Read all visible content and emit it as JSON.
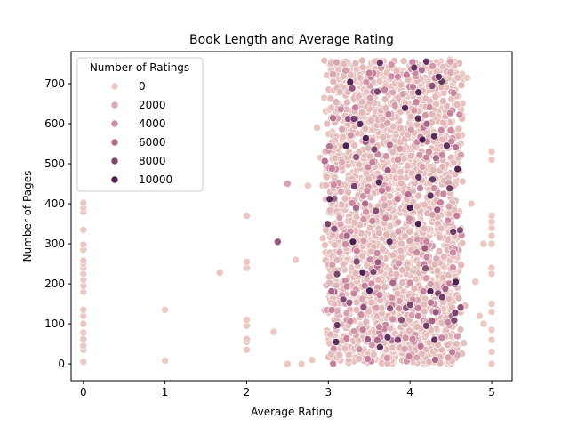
{
  "chart_data": {
    "type": "scatter",
    "title": "Book Length and Average Rating",
    "xlabel": "Average Rating",
    "ylabel": "Number of Pages",
    "xlim": [
      -0.15,
      5.25
    ],
    "ylim": [
      -42,
      780
    ],
    "xticks": [
      0,
      1,
      2,
      3,
      4,
      5
    ],
    "yticks": [
      0,
      100,
      200,
      300,
      400,
      500,
      600,
      700
    ],
    "grid": false,
    "legend": {
      "title": "Number of Ratings",
      "placement": "upper-left",
      "entries": [
        {
          "label": "0",
          "value": 0
        },
        {
          "label": "2000",
          "value": 2000
        },
        {
          "label": "4000",
          "value": 4000
        },
        {
          "label": "6000",
          "value": 6000
        },
        {
          "label": "8000",
          "value": 8000
        },
        {
          "label": "10000",
          "value": 10000
        }
      ]
    },
    "hue_colors": {
      "low": "#ebc8c1",
      "mid": "#c57e9b",
      "high": "#4a1f4f"
    },
    "points": [
      {
        "x": 0,
        "y": 5,
        "r": 0
      },
      {
        "x": 0,
        "y": 35,
        "r": 0
      },
      {
        "x": 0,
        "y": 45,
        "r": 0
      },
      {
        "x": 0,
        "y": 62,
        "r": 0
      },
      {
        "x": 0,
        "y": 78,
        "r": 0
      },
      {
        "x": 0,
        "y": 100,
        "r": 0
      },
      {
        "x": 0,
        "y": 120,
        "r": 0
      },
      {
        "x": 0,
        "y": 135,
        "r": 0
      },
      {
        "x": 0,
        "y": 180,
        "r": 0
      },
      {
        "x": 0,
        "y": 195,
        "r": 0
      },
      {
        "x": 0,
        "y": 210,
        "r": 0
      },
      {
        "x": 0,
        "y": 225,
        "r": 0
      },
      {
        "x": 0,
        "y": 240,
        "r": 0
      },
      {
        "x": 0,
        "y": 250,
        "r": 0
      },
      {
        "x": 0,
        "y": 258,
        "r": 0
      },
      {
        "x": 0,
        "y": 285,
        "r": 0
      },
      {
        "x": 0,
        "y": 298,
        "r": 0
      },
      {
        "x": 0,
        "y": 335,
        "r": 0
      },
      {
        "x": 0,
        "y": 380,
        "r": 0
      },
      {
        "x": 0,
        "y": 390,
        "r": 0
      },
      {
        "x": 0,
        "y": 402,
        "r": 0
      },
      {
        "x": 1,
        "y": 8,
        "r": 0
      },
      {
        "x": 1,
        "y": 135,
        "r": 0
      },
      {
        "x": 1.67,
        "y": 228,
        "r": 0
      },
      {
        "x": 2,
        "y": 35,
        "r": 0
      },
      {
        "x": 2,
        "y": 55,
        "r": 0
      },
      {
        "x": 2,
        "y": 62,
        "r": 0
      },
      {
        "x": 2,
        "y": 95,
        "r": 0
      },
      {
        "x": 2,
        "y": 110,
        "r": 0
      },
      {
        "x": 2,
        "y": 240,
        "r": 0
      },
      {
        "x": 2,
        "y": 255,
        "r": 0
      },
      {
        "x": 2,
        "y": 370,
        "r": 0
      },
      {
        "x": 2.33,
        "y": 80,
        "r": 0
      },
      {
        "x": 2.38,
        "y": 305,
        "r": 7000
      },
      {
        "x": 2.5,
        "y": 0,
        "r": 0
      },
      {
        "x": 2.5,
        "y": 450,
        "r": 2500
      },
      {
        "x": 2.6,
        "y": 260,
        "r": 0
      },
      {
        "x": 2.67,
        "y": 0,
        "r": 0
      },
      {
        "x": 2.75,
        "y": 445,
        "r": 0
      },
      {
        "x": 2.8,
        "y": 10,
        "r": 0
      },
      {
        "x": 2.86,
        "y": 590,
        "r": 0
      },
      {
        "x": 2.9,
        "y": 515,
        "r": 0
      },
      {
        "x": 2.95,
        "y": 665,
        "r": 0
      },
      {
        "x": 3.0,
        "y": 720,
        "r": 0
      },
      {
        "x": 3.05,
        "y": 580,
        "r": 0
      },
      {
        "x": 3.1,
        "y": 745,
        "r": 0
      },
      {
        "x": 3.2,
        "y": 740,
        "r": 0
      },
      {
        "x": 3.33,
        "y": 640,
        "r": 5000
      },
      {
        "x": 4.65,
        "y": 710,
        "r": 0
      },
      {
        "x": 4.7,
        "y": 715,
        "r": 0
      },
      {
        "x": 4.75,
        "y": 400,
        "r": 0
      },
      {
        "x": 4.8,
        "y": 205,
        "r": 0
      },
      {
        "x": 4.85,
        "y": 120,
        "r": 0
      },
      {
        "x": 4.9,
        "y": 300,
        "r": 0
      },
      {
        "x": 4.9,
        "y": 100,
        "r": 0
      },
      {
        "x": 5,
        "y": 0,
        "r": 0
      },
      {
        "x": 5,
        "y": 30,
        "r": 0
      },
      {
        "x": 5,
        "y": 60,
        "r": 0
      },
      {
        "x": 5,
        "y": 85,
        "r": 0
      },
      {
        "x": 5,
        "y": 130,
        "r": 0
      },
      {
        "x": 5,
        "y": 150,
        "r": 0
      },
      {
        "x": 5,
        "y": 225,
        "r": 0
      },
      {
        "x": 5,
        "y": 240,
        "r": 0
      },
      {
        "x": 5,
        "y": 300,
        "r": 0
      },
      {
        "x": 5,
        "y": 320,
        "r": 0
      },
      {
        "x": 5,
        "y": 340,
        "r": 0
      },
      {
        "x": 5,
        "y": 355,
        "r": 0
      },
      {
        "x": 5,
        "y": 370,
        "r": 0
      },
      {
        "x": 5,
        "y": 510,
        "r": 0
      },
      {
        "x": 5,
        "y": 530,
        "r": 0
      },
      {
        "x": 4.15,
        "y": 560,
        "r": 10000
      },
      {
        "x": 4.05,
        "y": 740,
        "r": 9000
      },
      {
        "x": 3.45,
        "y": 400,
        "r": 6000
      },
      {
        "x": 4.0,
        "y": 390,
        "r": 10000
      },
      {
        "x": 4.45,
        "y": 545,
        "r": 9000
      },
      {
        "x": 4.55,
        "y": 200,
        "r": 8000
      },
      {
        "x": 3.3,
        "y": 305,
        "r": 10000
      },
      {
        "x": 3.75,
        "y": 305,
        "r": 9000
      },
      {
        "x": 4.1,
        "y": 350,
        "r": 10000
      },
      {
        "x": 4.2,
        "y": 755,
        "r": 9000
      },
      {
        "x": 3.6,
        "y": 680,
        "r": 8000
      },
      {
        "x": 3.95,
        "y": 140,
        "r": 7000
      },
      {
        "x": 4.3,
        "y": 60,
        "r": 9000
      },
      {
        "x": 3.55,
        "y": 230,
        "r": 8000
      },
      {
        "x": 4.25,
        "y": 420,
        "r": 9000
      },
      {
        "x": 3.85,
        "y": 60,
        "r": 8000
      }
    ]
  }
}
